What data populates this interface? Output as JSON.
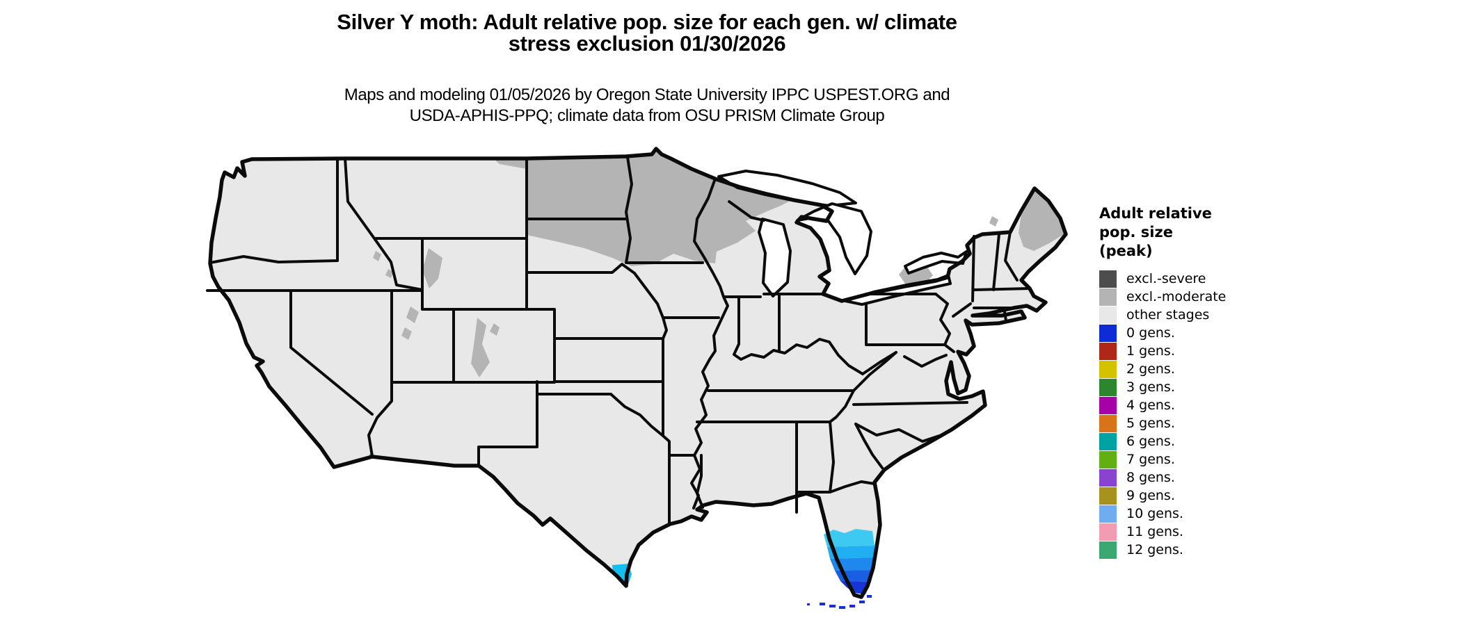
{
  "header": {
    "title_line1": "Silver Y moth: Adult relative pop. size for each gen. w/ climate",
    "title_line2": "stress exclusion 01/30/2026",
    "subtitle_line1": "Maps and modeling 01/05/2026 by Oregon State University IPPC USPEST.ORG and",
    "subtitle_line2": "USDA-APHIS-PPQ; climate data from OSU PRISM Climate Group"
  },
  "legend": {
    "title_line1": "Adult relative",
    "title_line2": "pop. size",
    "title_line3": "(peak)",
    "items": [
      {
        "label": "excl.-severe",
        "color": "#4d4d4d"
      },
      {
        "label": "excl.-moderate",
        "color": "#b4b4b4"
      },
      {
        "label": "other stages",
        "color": "#e8e8e8"
      },
      {
        "label": "0 gens.",
        "color": "#0d2cd8"
      },
      {
        "label": "1 gens.",
        "color": "#ad2817"
      },
      {
        "label": "2 gens.",
        "color": "#d4c100"
      },
      {
        "label": "3 gens.",
        "color": "#2d862d"
      },
      {
        "label": "4 gens.",
        "color": "#a800a8"
      },
      {
        "label": "5 gens.",
        "color": "#d9731a"
      },
      {
        "label": "6 gens.",
        "color": "#00a2a2"
      },
      {
        "label": "7 gens.",
        "color": "#61af10"
      },
      {
        "label": "8 gens.",
        "color": "#8a42d1"
      },
      {
        "label": "9 gens.",
        "color": "#a8921e"
      },
      {
        "label": "10 gens.",
        "color": "#6fadf0"
      },
      {
        "label": "11 gens.",
        "color": "#f29cb1"
      },
      {
        "label": "12 gens.",
        "color": "#3ba871"
      }
    ]
  },
  "map": {
    "region": "Continental United States",
    "colors": {
      "land": "#e8e8e8",
      "exclusion_moderate": "#b4b4b4",
      "border": "#0b0b0b",
      "lake": "#ffffff",
      "florida_band_1": "#3ec9f2",
      "florida_band_2": "#22aef2",
      "florida_band_3": "#1e88ee",
      "florida_band_4": "#1a5ee4",
      "florida_band_5": "#1535d4",
      "florida_keys": "#1b2ed0",
      "texas_tip": "#12bff0"
    }
  }
}
